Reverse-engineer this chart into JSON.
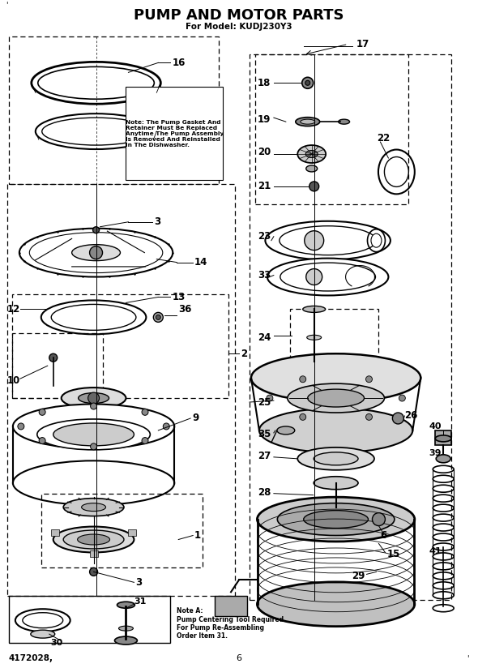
{
  "title": "PUMP AND MOTOR PARTS",
  "subtitle": "For Model: KUDJ230Y3",
  "footer_left": "4172028,",
  "footer_center": "6",
  "bg_color": "#ffffff",
  "note_text": "Note: The Pump Gasket And\nRetainer Must Be Replaced\nAnytime The Pump Assembly\nIs Removed And Reinstalled\nIn The Dishwasher.",
  "note_a_text": "Note A:\nPump Centering Tool Required\nFor Pump Re-Assembling\nOrder Item 31."
}
